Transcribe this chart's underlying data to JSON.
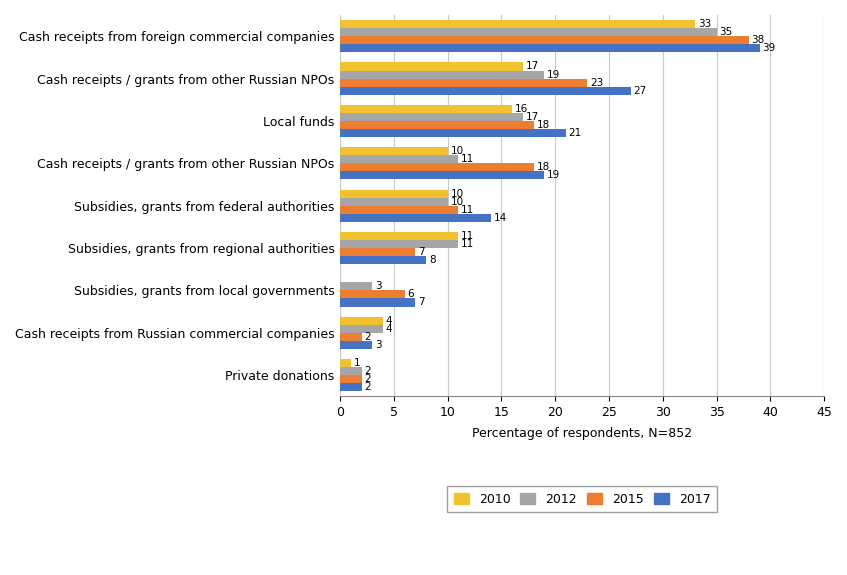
{
  "categories": [
    "Cash receipts from foreign commercial companies",
    "Cash receipts / grants from other Russian NPOs",
    "Local funds",
    "Cash receipts / grants from other Russian NPOs",
    "Subsidies, grants from federal authorities",
    "Subsidies, grants from regional authorities",
    "Subsidies, grants from local governments",
    "Cash receipts from Russian commercial companies",
    "Private donations"
  ],
  "years": [
    "2010",
    "2012",
    "2015",
    "2017"
  ],
  "colors": [
    "#f2c12e",
    "#a6a6a6",
    "#ed7d31",
    "#4472c4"
  ],
  "data": {
    "2010": [
      33,
      17,
      16,
      10,
      10,
      11,
      null,
      4,
      1
    ],
    "2012": [
      35,
      19,
      17,
      11,
      10,
      11,
      3,
      4,
      2
    ],
    "2015": [
      38,
      23,
      18,
      18,
      11,
      7,
      6,
      2,
      2
    ],
    "2017": [
      39,
      27,
      21,
      19,
      14,
      8,
      7,
      3,
      2
    ]
  },
  "xlabel": "Percentage of respondents, N=852",
  "xlim": [
    0,
    45
  ],
  "xticks": [
    0,
    5,
    10,
    15,
    20,
    25,
    30,
    35,
    40,
    45
  ],
  "bar_height": 0.19,
  "background_color": "#ffffff",
  "grid_color": "#c8c8c8",
  "label_fontsize": 7.5,
  "axis_fontsize": 9,
  "ytick_fontsize": 9
}
